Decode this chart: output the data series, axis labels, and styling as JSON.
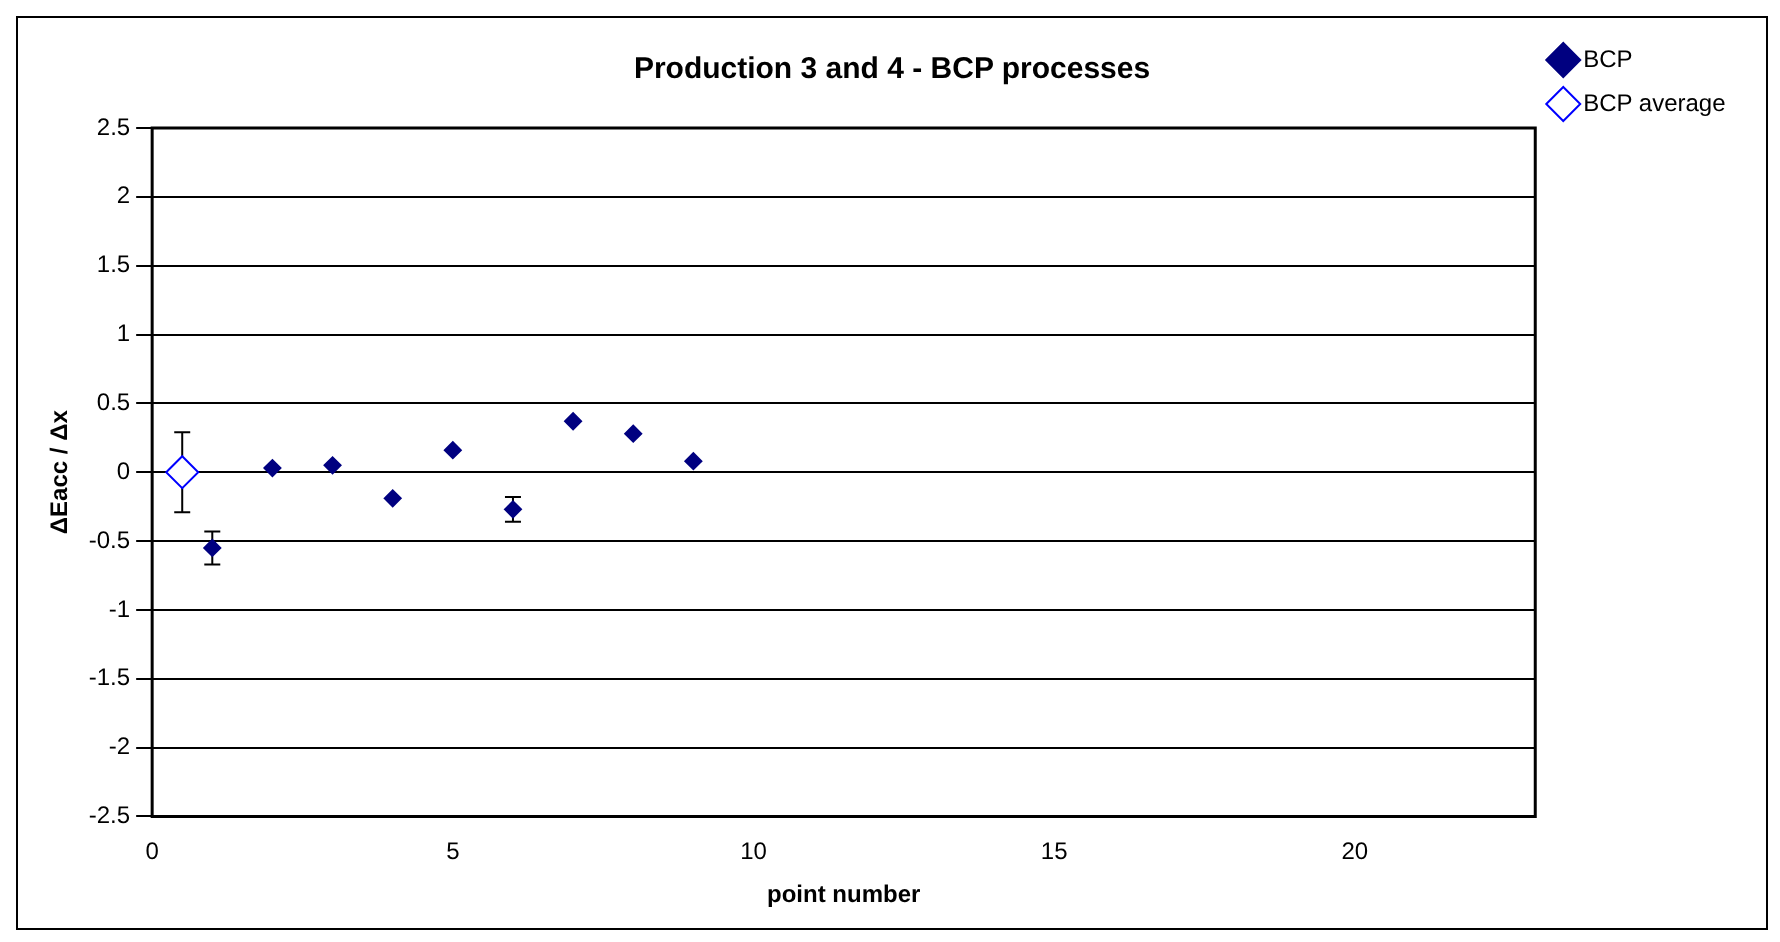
{
  "chart_data": {
    "type": "scatter",
    "title": "Production 3 and 4 - BCP processes",
    "xlabel": "point number",
    "ylabel": "ΔEacc / Δx",
    "series": [
      {
        "name": "BCP",
        "color": "#000080",
        "marker": "diamond",
        "x": [
          1,
          2,
          3,
          4,
          5,
          6,
          7,
          8,
          9
        ],
        "values": [
          -0.55,
          0.03,
          0.05,
          -0.19,
          0.16,
          -0.27,
          0.37,
          0.28,
          0.08
        ],
        "errors": [
          0.12,
          null,
          null,
          null,
          null,
          0.09,
          null,
          null,
          null
        ]
      },
      {
        "name": "BCP average",
        "color": "#0000ff",
        "marker": "diamond",
        "x": [
          0.5
        ],
        "values": [
          0
        ],
        "errors": [
          0.29
        ]
      }
    ],
    "xlim": [
      0,
      23
    ],
    "xticks": [
      0,
      5,
      10,
      15,
      20
    ],
    "ylim": [
      -2.5,
      2.5
    ],
    "yticks": [
      -2.5,
      -2,
      -1.5,
      -1,
      -0.5,
      0,
      0.5,
      1,
      1.5,
      2,
      2.5
    ],
    "grid": "y",
    "legend": "top right"
  }
}
